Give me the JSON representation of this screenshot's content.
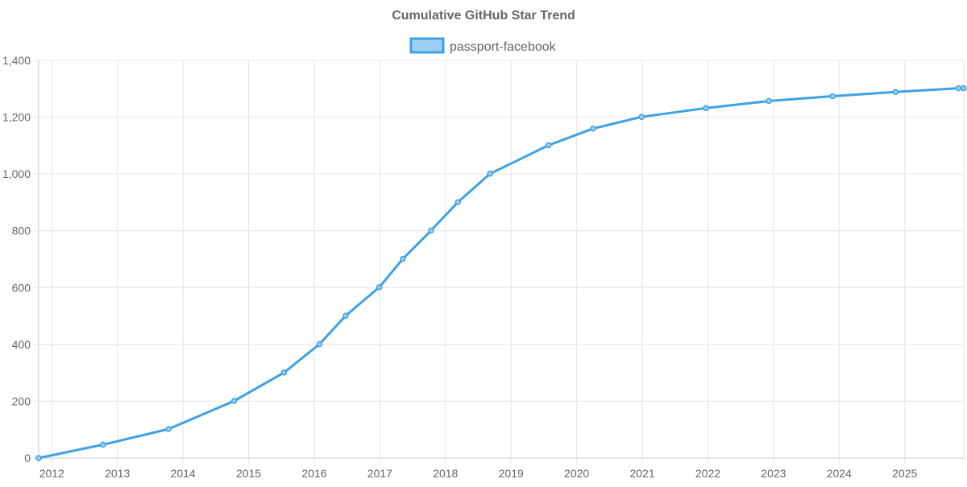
{
  "chart_data": {
    "type": "line",
    "title": "Cumulative GitHub Star Trend",
    "xlabel": "",
    "ylabel": "",
    "legend": {
      "position": "top-center"
    },
    "grid": true,
    "x_range": [
      2011.8,
      2025.9
    ],
    "ylim": [
      0,
      1400
    ],
    "x_ticks": [
      "2012",
      "2013",
      "2014",
      "2015",
      "2016",
      "2017",
      "2018",
      "2019",
      "2020",
      "2021",
      "2022",
      "2023",
      "2024",
      "2025"
    ],
    "y_ticks": [
      "0",
      "200",
      "400",
      "600",
      "800",
      "1,000",
      "1,200",
      "1,400"
    ],
    "series": [
      {
        "name": "passport-facebook",
        "color": "#3ea2e4",
        "fill": "#9ccff3",
        "points": [
          {
            "x": 2011.8,
            "y": 0
          },
          {
            "x": 2012.78,
            "y": 47
          },
          {
            "x": 2013.78,
            "y": 102
          },
          {
            "x": 2014.78,
            "y": 201
          },
          {
            "x": 2015.54,
            "y": 301
          },
          {
            "x": 2016.08,
            "y": 401
          },
          {
            "x": 2016.48,
            "y": 501
          },
          {
            "x": 2016.99,
            "y": 601
          },
          {
            "x": 2017.35,
            "y": 701
          },
          {
            "x": 2017.78,
            "y": 801
          },
          {
            "x": 2018.19,
            "y": 901
          },
          {
            "x": 2018.68,
            "y": 1001
          },
          {
            "x": 2019.57,
            "y": 1101
          },
          {
            "x": 2020.25,
            "y": 1160
          },
          {
            "x": 2020.99,
            "y": 1201
          },
          {
            "x": 2021.97,
            "y": 1232
          },
          {
            "x": 2022.93,
            "y": 1257
          },
          {
            "x": 2023.9,
            "y": 1274
          },
          {
            "x": 2024.86,
            "y": 1289
          },
          {
            "x": 2025.82,
            "y": 1302
          },
          {
            "x": 2025.9,
            "y": 1302
          }
        ]
      }
    ]
  }
}
